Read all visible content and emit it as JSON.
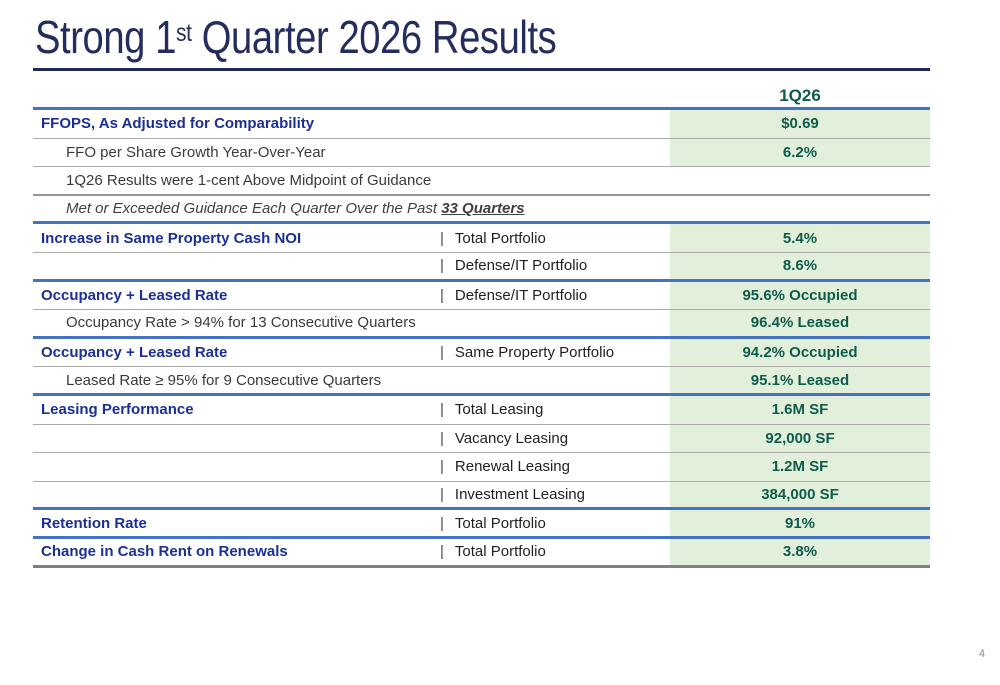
{
  "slide": {
    "title_prefix": "Strong 1",
    "title_sup": "st",
    "title_suffix": " Quarter 2026 Results",
    "page_number": "4"
  },
  "colors": {
    "title_navy": "#242D5E",
    "row_label_blue": "#1B2F94",
    "value_text_green": "#0E5C4B",
    "value_bg_green": "#E2EFDA",
    "section_divider_blue": "#4472C4",
    "sub_divider_gray": "#ABABAB"
  },
  "table": {
    "header": {
      "value_column": "1Q26"
    },
    "rows": [
      {
        "label": "FFOPS, As Adjusted for Comparability",
        "type": "header",
        "portfolio": "",
        "value": "$0.69",
        "divider": "gray",
        "span": false
      },
      {
        "label": "FFO per Share Growth Year-Over-Year",
        "type": "sub",
        "portfolio": "",
        "value": "6.2%",
        "divider": "gray",
        "span": false
      },
      {
        "label": "1Q26 Results were 1-cent Above Midpoint of Guidance",
        "type": "sub",
        "portfolio": "",
        "value": "",
        "divider": "graydark",
        "span": true
      },
      {
        "label": "Met or Exceeded Guidance Each Quarter Over the Past ",
        "label_strong": "33 Quarters",
        "type": "italic",
        "portfolio": "",
        "value": "",
        "divider": "blue",
        "span": true
      },
      {
        "label": "Increase in Same Property Cash NOI",
        "type": "header",
        "portfolio": "Total Portfolio",
        "value": "5.4%",
        "divider": "gray",
        "span": false
      },
      {
        "label": "",
        "type": "sub",
        "portfolio": "Defense/IT Portfolio",
        "value": "8.6%",
        "divider": "blue",
        "span": false
      },
      {
        "label": "Occupancy + Leased Rate",
        "type": "header",
        "portfolio": "Defense/IT Portfolio",
        "value": "95.6% Occupied",
        "divider": "gray",
        "span": false
      },
      {
        "label": "Occupancy Rate > 94% for 13 Consecutive Quarters",
        "type": "sub",
        "portfolio": "",
        "value": "96.4% Leased",
        "divider": "blue",
        "span": false
      },
      {
        "label": "Occupancy + Leased Rate",
        "type": "header",
        "portfolio": "Same Property Portfolio",
        "value": "94.2% Occupied",
        "divider": "gray",
        "span": false
      },
      {
        "label": "Leased Rate ≥ 95% for 9 Consecutive Quarters",
        "type": "sub",
        "portfolio": "",
        "value": "95.1% Leased",
        "divider": "blue",
        "span": false
      },
      {
        "label": "Leasing Performance",
        "type": "header",
        "portfolio": "Total Leasing",
        "value": "1.6M SF",
        "divider": "gray",
        "span": false
      },
      {
        "label": "",
        "type": "sub",
        "portfolio": "Vacancy Leasing",
        "value": "92,000 SF",
        "divider": "gray",
        "span": false
      },
      {
        "label": "",
        "type": "sub",
        "portfolio": "Renewal Leasing",
        "value": "1.2M SF",
        "divider": "gray",
        "span": false
      },
      {
        "label": "",
        "type": "sub",
        "portfolio": "Investment Leasing",
        "value": "384,000 SF",
        "divider": "blue",
        "span": false
      },
      {
        "label": "Retention Rate",
        "type": "header",
        "portfolio": "Total Portfolio",
        "value": "91%",
        "divider": "blue",
        "span": false
      },
      {
        "label": "Change in Cash Rent on Renewals",
        "type": "header",
        "portfolio": "Total Portfolio",
        "value": "3.8%",
        "divider": "end",
        "span": false
      }
    ]
  }
}
